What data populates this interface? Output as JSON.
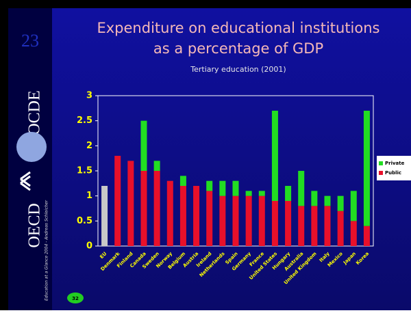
{
  "slide": {
    "number": "23",
    "logo_left": "OECD",
    "logo_right": "OCDE",
    "footer_note": "Education at a Glance 2004 - Andreas Schleicher",
    "page_badge": "32"
  },
  "chart_data": {
    "type": "stacked_bar",
    "title": "Expenditure on educational institutions as a percentage of GDP",
    "subtitle": "Tertiary education (2001)",
    "categories": [
      "EU",
      "Denmark",
      "Finland",
      "Canada",
      "Sweden",
      "Norway",
      "Belgium",
      "Austria",
      "Ireland",
      "Netherlands",
      "Spain",
      "Germany",
      "France",
      "United States",
      "Hungary",
      "Australia",
      "United Kingdom",
      "Italy",
      "Mexico",
      "Japan",
      "Korea"
    ],
    "series": [
      {
        "name": "Public",
        "color": "#e8102a",
        "colors": [
          "#c8c8c8",
          null,
          null,
          null,
          null,
          null,
          null,
          null,
          null,
          null,
          null,
          null,
          null,
          null,
          null,
          null,
          null,
          null,
          null,
          null,
          null
        ],
        "values": [
          1.2,
          1.8,
          1.7,
          1.5,
          1.5,
          1.3,
          1.2,
          1.2,
          1.1,
          1.0,
          1.0,
          1.0,
          1.0,
          0.9,
          0.9,
          0.8,
          0.8,
          0.8,
          0.7,
          0.5,
          0.4
        ]
      },
      {
        "name": "Private",
        "color": "#22dd22",
        "values": [
          null,
          null,
          null,
          1.0,
          0.2,
          null,
          0.2,
          null,
          0.2,
          0.3,
          0.3,
          0.1,
          0.1,
          1.8,
          0.3,
          0.7,
          0.3,
          0.2,
          0.3,
          0.6,
          2.3
        ]
      }
    ],
    "ylim": [
      0,
      3
    ],
    "yticks": [
      0,
      0.5,
      1,
      1.5,
      2,
      2.5,
      3
    ],
    "legend": "right"
  }
}
